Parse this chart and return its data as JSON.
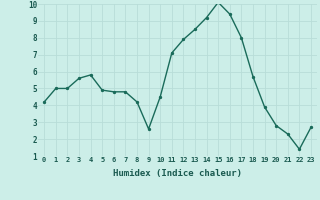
{
  "x": [
    0,
    1,
    2,
    3,
    4,
    5,
    6,
    7,
    8,
    9,
    10,
    11,
    12,
    13,
    14,
    15,
    16,
    17,
    18,
    19,
    20,
    21,
    22,
    23
  ],
  "y": [
    4.2,
    5.0,
    5.0,
    5.6,
    5.8,
    4.9,
    4.8,
    4.8,
    4.2,
    2.6,
    4.5,
    7.1,
    7.9,
    8.5,
    9.2,
    10.1,
    9.4,
    8.0,
    5.7,
    3.9,
    2.8,
    2.3,
    1.4,
    2.7
  ],
  "line_color": "#1a6b5a",
  "bg_color": "#cceee8",
  "grid_color": "#b8ddd8",
  "xlabel": "Humidex (Indice chaleur)",
  "ylim": [
    1,
    10
  ],
  "xlim_min": -0.5,
  "xlim_max": 23.5,
  "yticks": [
    1,
    2,
    3,
    4,
    5,
    6,
    7,
    8,
    9,
    10
  ],
  "xticks": [
    0,
    1,
    2,
    3,
    4,
    5,
    6,
    7,
    8,
    9,
    10,
    11,
    12,
    13,
    14,
    15,
    16,
    17,
    18,
    19,
    20,
    21,
    22,
    23
  ],
  "tick_fontsize": 5.0,
  "xlabel_fontsize": 6.5
}
